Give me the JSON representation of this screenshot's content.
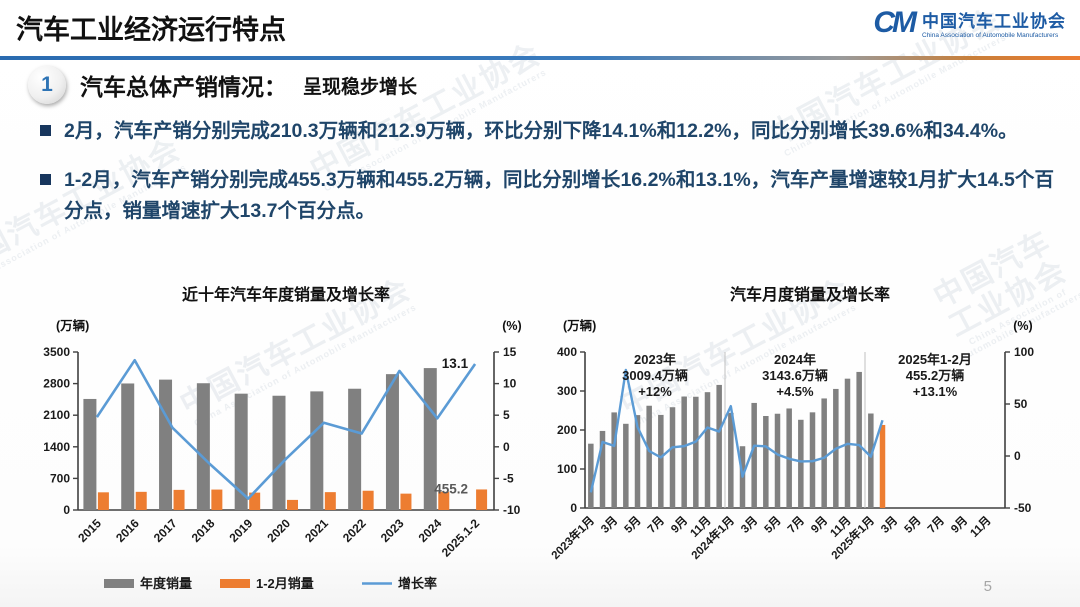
{
  "header": {
    "title": "汽车工业经济运行特点",
    "logo": {
      "mark": "CM",
      "org_cn": "中国汽车工业协会",
      "org_en": "China Association of Automobile Manufacturers"
    }
  },
  "section": {
    "number": "1",
    "title": "汽车总体产销情况：",
    "subtitle": "呈现稳步增长"
  },
  "bullets": [
    "2月，汽车产销分别完成210.3万辆和212.9万辆，环比分别下降14.1%和12.2%，同比分别增长39.6%和34.4%。",
    "1-2月，汽车产销分别完成455.3万辆和455.2万辆，同比分别增长16.2%和13.1%，汽车产量增速较1月扩大14.5个百分点，销量增速扩大13.7个百分点。"
  ],
  "page_number": "5",
  "watermark": {
    "text_cn": "中国汽车工业协会",
    "text_en": "China Association of Automobile Manufacturers"
  },
  "colors": {
    "bar_gray": "#808080",
    "bar_orange": "#ED7D31",
    "line_blue": "#5B9BD5",
    "axis": "#404040",
    "accent_blue": "#2E74B5",
    "label_dark": "#1a1a1a",
    "label_gray": "#595959",
    "separator": "#c0c0c0"
  },
  "chart_data": [
    {
      "type": "bar",
      "title": "近十年汽车年度销量及增长率",
      "unit_left": "(万辆)",
      "unit_right": "(%)",
      "categories": [
        "2015",
        "2016",
        "2017",
        "2018",
        "2019",
        "2020",
        "2021",
        "2022",
        "2023",
        "2024",
        "2025.1-2"
      ],
      "series": [
        {
          "name": "年度销量",
          "kind": "bar",
          "color_key": "bar_gray",
          "values": [
            2459.8,
            2802.8,
            2887.9,
            2808.1,
            2576.9,
            2531.1,
            2627.5,
            2686.4,
            3009.4,
            3143.6,
            null
          ]
        },
        {
          "name": "1-2月销量",
          "kind": "bar",
          "color_key": "bar_orange",
          "values": [
            391.6,
            402.4,
            445.9,
            452.7,
            385.2,
            223.8,
            395.8,
            426.8,
            362.5,
            402.6,
            455.2
          ]
        },
        {
          "name": "增长率",
          "kind": "line",
          "color_key": "line_blue",
          "axis": "right",
          "values": [
            4.7,
            13.7,
            3.0,
            -2.8,
            -8.2,
            -1.9,
            3.8,
            2.1,
            12.0,
            4.5,
            13.1
          ]
        }
      ],
      "left_axis": {
        "min": 0,
        "max": 3500,
        "ticks": [
          0,
          700,
          1400,
          2100,
          2800,
          3500
        ]
      },
      "right_axis": {
        "min": -10,
        "max": 15,
        "ticks": [
          -10,
          -5,
          0,
          5,
          10,
          15
        ]
      },
      "point_labels": [
        {
          "series": 2,
          "index": 10,
          "text": "13.1",
          "color_key": "label_dark"
        },
        {
          "series": 1,
          "index": 10,
          "text": "455.2",
          "color_key": "label_gray"
        }
      ],
      "legend_position": "bottom"
    },
    {
      "type": "bar",
      "title": "汽车月度销量及增长率",
      "unit_left": "(万辆)",
      "unit_right": "(%)",
      "x_slots": 36,
      "xticks": {
        "positions": [
          0,
          2,
          4,
          6,
          8,
          10,
          12,
          14,
          16,
          18,
          20,
          22,
          24,
          26,
          28,
          30,
          32,
          34
        ],
        "labels": [
          "2023年1月",
          "3月",
          "5月",
          "7月",
          "9月",
          "11月",
          "2024年1月",
          "3月",
          "5月",
          "7月",
          "9月",
          "11月",
          "2025年1月",
          "3月",
          "5月",
          "7月",
          "9月",
          "11月"
        ]
      },
      "series": [
        {
          "name": "月度销量",
          "kind": "bar",
          "color_key": "bar_gray",
          "values": [
            164.9,
            197.6,
            245.1,
            215.9,
            238.2,
            262.2,
            238.7,
            258.4,
            285.8,
            285.3,
            297.0,
            315.6,
            243.9,
            158.4,
            269.4,
            235.9,
            241.7,
            255.2,
            226.2,
            245.3,
            280.9,
            305.3,
            331.6,
            348.9,
            242.3,
            212.9
          ],
          "highlight_index": 25,
          "highlight_color_key": "bar_orange"
        },
        {
          "name": "增长率",
          "kind": "line",
          "color_key": "line_blue",
          "axis": "right",
          "values": [
            -35.0,
            13.5,
            9.7,
            82.7,
            27.9,
            4.8,
            -1.4,
            8.4,
            9.5,
            13.8,
            27.4,
            23.5,
            47.9,
            -19.9,
            9.9,
            9.3,
            1.5,
            -2.7,
            -5.2,
            -5.0,
            -1.7,
            7.0,
            11.7,
            10.5,
            -0.6,
            34.4
          ]
        }
      ],
      "left_axis": {
        "min": 0,
        "max": 400,
        "ticks": [
          0,
          100,
          200,
          300,
          400
        ]
      },
      "right_axis": {
        "min": -50,
        "max": 100,
        "ticks": [
          -50,
          0,
          50,
          100
        ]
      },
      "year_separators": [
        12,
        24
      ],
      "annotations": [
        {
          "slot_center": 5.5,
          "lines": [
            "2023年",
            "3009.4万辆",
            "+12%"
          ]
        },
        {
          "slot_center": 17.5,
          "lines": [
            "2024年",
            "3143.6万辆",
            "+4.5%"
          ]
        },
        {
          "slot_center": 29.5,
          "lines": [
            "2025年1-2月",
            "455.2万辆",
            "+13.1%"
          ]
        }
      ]
    }
  ]
}
